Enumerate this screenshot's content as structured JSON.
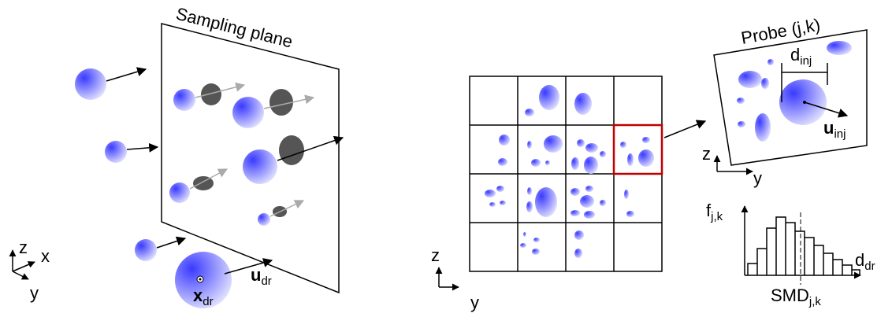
{
  "left": {
    "plane_label": "Sampling plane",
    "axes": {
      "z": "z",
      "x": "x",
      "y": "y"
    },
    "position": {
      "base": "x",
      "sub": "dr"
    },
    "velocity": {
      "base": "u",
      "sub": "dr"
    }
  },
  "grid": {
    "axes": {
      "z": "z",
      "y": "y"
    }
  },
  "probe": {
    "title": "Probe (j,k)",
    "diameter": {
      "base": "d",
      "sub": "inj"
    },
    "velocity": {
      "base": "u",
      "sub": "inj"
    },
    "axes": {
      "z": "z",
      "y": "y"
    }
  },
  "histogram": {
    "y_label": {
      "base": "f",
      "sub": "j,k"
    },
    "x_label": {
      "base": "d",
      "sub": "dr"
    },
    "smd_label": {
      "base": "SMD",
      "sub": "j,k"
    }
  }
}
